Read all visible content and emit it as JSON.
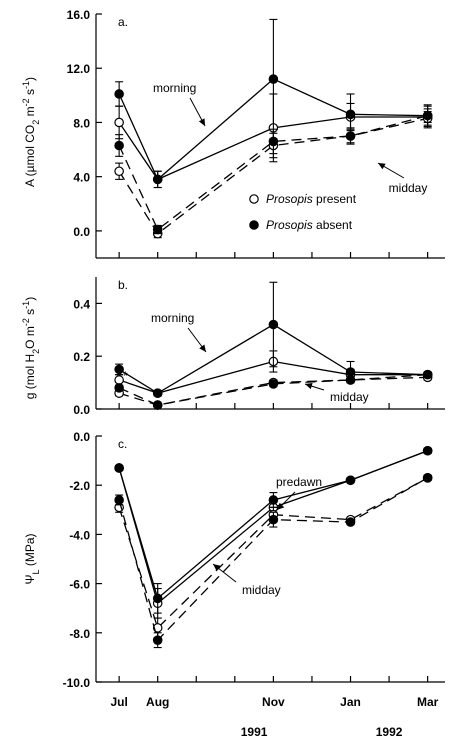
{
  "chart_data": [
    {
      "type": "line",
      "panel_label": "a.",
      "ylabel": "A (µmol CO₂ m⁻² s⁻¹)",
      "ylabel_parts": {
        "pre": "A (µmol CO",
        "sub": "2",
        "mid": " m",
        "sup1": "-2",
        "mid2": " s",
        "sup2": "-1",
        "post": ")"
      },
      "ylim": [
        -2,
        16
      ],
      "yticks": [
        "16.0",
        "12.0",
        "8.0",
        "4.0",
        "0.0"
      ],
      "ytick_values": [
        16,
        12,
        8,
        4,
        0
      ],
      "annotations": [
        "morning",
        "midday"
      ],
      "legend": [
        {
          "marker": "open",
          "label_italic": "Prosopis",
          "label_rest": " present"
        },
        {
          "marker": "filled",
          "label_italic": "Prosopis",
          "label_rest": " absent"
        }
      ],
      "series": [
        {
          "name": "Prosopis present",
          "time": "morning",
          "marker": "open",
          "line": "solid",
          "x": [
            0,
            1,
            4,
            6,
            8
          ],
          "y": [
            8.0,
            3.8,
            7.6,
            8.4,
            8.4
          ],
          "err": [
            1.2,
            0.6,
            2.5,
            1.0,
            0.8
          ]
        },
        {
          "name": "Prosopis absent",
          "time": "morning",
          "marker": "filled",
          "line": "solid",
          "x": [
            0,
            1,
            4,
            6,
            8
          ],
          "y": [
            10.1,
            3.8,
            11.2,
            8.6,
            8.5
          ],
          "err": [
            0.9,
            0.6,
            4.4,
            1.5,
            0.8
          ]
        },
        {
          "name": "Prosopis present",
          "time": "midday",
          "marker": "open",
          "line": "dashed",
          "x": [
            0,
            1,
            4,
            6,
            8
          ],
          "y": [
            4.4,
            -0.2,
            6.3,
            7.0,
            8.3
          ],
          "err": [
            0.6,
            0.3,
            0.9,
            0.6,
            0.5
          ]
        },
        {
          "name": "Prosopis absent",
          "time": "midday",
          "marker": "filled",
          "line": "dashed",
          "x": [
            0,
            1,
            4,
            6,
            8
          ],
          "y": [
            6.3,
            0.1,
            6.6,
            7.0,
            8.5
          ],
          "err": [
            0.8,
            0.3,
            0.9,
            0.5,
            0.5
          ]
        }
      ]
    },
    {
      "type": "line",
      "panel_label": "b.",
      "ylabel": "g (mol H₂O m⁻² s⁻¹)",
      "ylabel_parts": {
        "pre": "g (mol H",
        "sub": "2",
        "mid": "O m",
        "sup1": "-2",
        "mid2": " s",
        "sup2": "-1",
        "post": ")"
      },
      "ylim": [
        0,
        0.5
      ],
      "yticks": [
        "0.4",
        "0.2",
        "0.0"
      ],
      "ytick_values": [
        0.4,
        0.2,
        0.0
      ],
      "annotations": [
        "morning",
        "midday",
        "*"
      ],
      "series": [
        {
          "name": "Prosopis present",
          "time": "morning",
          "marker": "open",
          "line": "solid",
          "x": [
            0,
            1,
            4,
            6,
            8
          ],
          "y": [
            0.11,
            0.06,
            0.18,
            0.13,
            0.13
          ],
          "err": [
            0.02,
            0.01,
            0.04,
            0.02,
            0.01
          ]
        },
        {
          "name": "Prosopis absent",
          "time": "morning",
          "marker": "filled",
          "line": "solid",
          "x": [
            0,
            1,
            4,
            6,
            8
          ],
          "y": [
            0.15,
            0.06,
            0.32,
            0.14,
            0.13
          ],
          "err": [
            0.02,
            0.01,
            0.16,
            0.04,
            0.01
          ]
        },
        {
          "name": "Prosopis present",
          "time": "midday",
          "marker": "open",
          "line": "dashed",
          "x": [
            0,
            1,
            4,
            6,
            8
          ],
          "y": [
            0.06,
            0.015,
            0.1,
            0.11,
            0.12
          ],
          "err": [
            0.01,
            0.005,
            0.01,
            0.01,
            0.01
          ]
        },
        {
          "name": "Prosopis absent",
          "time": "midday",
          "marker": "filled",
          "line": "dashed",
          "x": [
            0,
            1,
            4,
            6,
            8
          ],
          "y": [
            0.08,
            0.015,
            0.095,
            0.11,
            0.13
          ],
          "err": [
            0.01,
            0.005,
            0.01,
            0.01,
            0.01
          ]
        }
      ]
    },
    {
      "type": "line",
      "panel_label": "c.",
      "ylabel": "ΨL (MPa)",
      "ylabel_parts": {
        "pre": "Ψ",
        "sub": "L",
        "post": " (MPa)"
      },
      "ylim": [
        -10,
        0
      ],
      "yticks": [
        "0.0",
        "-2.0",
        "-4.0",
        "-6.0",
        "-8.0",
        "-10.0"
      ],
      "ytick_values": [
        0,
        -2,
        -4,
        -6,
        -8,
        -10
      ],
      "annotations": [
        "predawn",
        "midday"
      ],
      "series": [
        {
          "name": "Prosopis present",
          "time": "predawn",
          "marker": "open",
          "line": "solid",
          "x": [
            0,
            1,
            4,
            6,
            8
          ],
          "y": [
            -1.3,
            -6.8,
            -2.9,
            -1.8,
            -0.6
          ],
          "err": [
            0.1,
            0.6,
            0.3,
            0.1,
            0.1
          ]
        },
        {
          "name": "Prosopis absent",
          "time": "predawn",
          "marker": "filled",
          "line": "solid",
          "x": [
            0,
            1,
            4,
            6,
            8
          ],
          "y": [
            -1.3,
            -6.6,
            -2.6,
            -1.8,
            -0.6
          ],
          "err": [
            0.1,
            0.6,
            0.3,
            0.1,
            0.1
          ]
        },
        {
          "name": "Prosopis present",
          "time": "midday",
          "marker": "open",
          "line": "dashed",
          "x": [
            0,
            1,
            4,
            6,
            8
          ],
          "y": [
            -2.9,
            -7.8,
            -3.2,
            -3.4,
            -1.7
          ],
          "err": [
            0.2,
            0.4,
            0.3,
            0.1,
            0.1
          ]
        },
        {
          "name": "Prosopis absent",
          "time": "midday",
          "marker": "filled",
          "line": "dashed",
          "x": [
            0,
            1,
            4,
            6,
            8
          ],
          "y": [
            -2.6,
            -8.3,
            -3.4,
            -3.5,
            -1.7
          ],
          "err": [
            0.2,
            0.3,
            0.3,
            0.1,
            0.1
          ]
        }
      ]
    }
  ],
  "x_axis": {
    "months": [
      "Jul",
      "Aug",
      "Nov",
      "Jan",
      "Mar"
    ],
    "month_positions": [
      0,
      1,
      4,
      6,
      8
    ],
    "tick_count": 9,
    "years": [
      "1991",
      "1992"
    ]
  }
}
